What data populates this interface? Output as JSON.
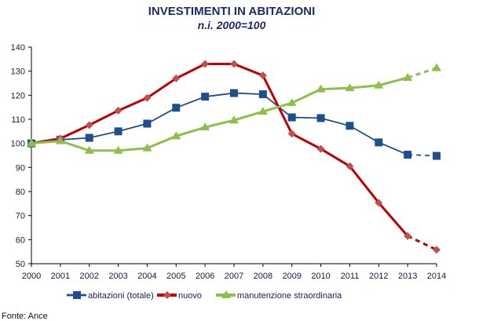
{
  "chart_data": {
    "type": "line",
    "title": "INVESTIMENTI IN ABITAZIONI",
    "subtitle": "n.i. 2000=100",
    "x": [
      "2000",
      "2001",
      "2002",
      "2003",
      "2004",
      "2005",
      "2006",
      "2007",
      "2008",
      "2009",
      "2010",
      "2011",
      "2012",
      "2013",
      "2014"
    ],
    "ylim": [
      50,
      140
    ],
    "yticks": [
      50,
      60,
      70,
      80,
      90,
      100,
      110,
      120,
      130,
      140
    ],
    "grid": false,
    "legend": "bottom",
    "dashed_last_segment": true,
    "series": [
      {
        "name": "abitazioni (totale)",
        "color": "#1f4e8c",
        "marker": "square",
        "values": [
          100,
          101.5,
          102.3,
          105,
          108.2,
          114.8,
          119.4,
          120.9,
          120.4,
          110.8,
          110.5,
          107.3,
          100.4,
          95.3,
          94.8
        ]
      },
      {
        "name": "nuovo",
        "color": "#c00000",
        "marker": "diamond",
        "values": [
          100,
          102,
          107.6,
          113.6,
          118.9,
          127,
          133,
          133,
          128.2,
          104,
          97.7,
          90.5,
          75.3,
          61.5,
          55.8
        ]
      },
      {
        "name": "manutenzione straordinaria",
        "color": "#8dc04a",
        "marker": "triangle",
        "values": [
          100,
          101,
          97,
          97,
          98,
          103,
          106.7,
          109.6,
          113.2,
          116.8,
          122.5,
          123,
          124.1,
          127.3,
          131.3
        ]
      }
    ]
  },
  "source": "Fonte: Ance"
}
